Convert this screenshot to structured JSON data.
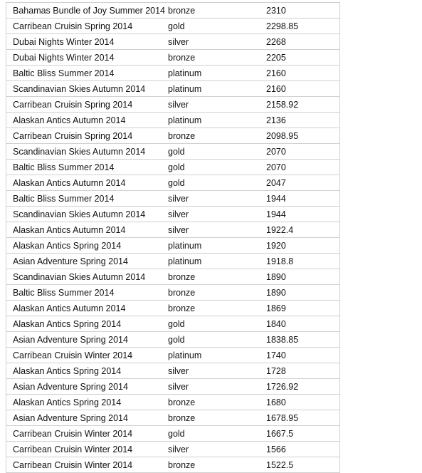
{
  "table": {
    "rows": [
      {
        "package": "Bahamas Bundle of Joy Summer 2014",
        "tier": "bronze",
        "price": "2310"
      },
      {
        "package": "Carribean Cruisin Spring 2014",
        "tier": "gold",
        "price": "2298.85"
      },
      {
        "package": "Dubai Nights Winter 2014",
        "tier": "silver",
        "price": "2268"
      },
      {
        "package": "Dubai Nights Winter 2014",
        "tier": "bronze",
        "price": "2205"
      },
      {
        "package": "Baltic Bliss Summer 2014",
        "tier": "platinum",
        "price": "2160"
      },
      {
        "package": "Scandinavian Skies Autumn 2014",
        "tier": "platinum",
        "price": "2160"
      },
      {
        "package": "Carribean Cruisin Spring 2014",
        "tier": "silver",
        "price": "2158.92"
      },
      {
        "package": "Alaskan Antics Autumn 2014",
        "tier": "platinum",
        "price": "2136"
      },
      {
        "package": "Carribean Cruisin Spring 2014",
        "tier": "bronze",
        "price": "2098.95"
      },
      {
        "package": "Scandinavian Skies Autumn 2014",
        "tier": "gold",
        "price": "2070"
      },
      {
        "package": "Baltic Bliss Summer 2014",
        "tier": "gold",
        "price": "2070"
      },
      {
        "package": "Alaskan Antics Autumn 2014",
        "tier": "gold",
        "price": "2047"
      },
      {
        "package": "Baltic Bliss Summer 2014",
        "tier": "silver",
        "price": "1944"
      },
      {
        "package": "Scandinavian Skies Autumn 2014",
        "tier": "silver",
        "price": "1944"
      },
      {
        "package": "Alaskan Antics Autumn 2014",
        "tier": "silver",
        "price": "1922.4"
      },
      {
        "package": "Alaskan Antics Spring 2014",
        "tier": "platinum",
        "price": "1920"
      },
      {
        "package": "Asian Adventure Spring 2014",
        "tier": "platinum",
        "price": "1918.8"
      },
      {
        "package": "Scandinavian Skies Autumn 2014",
        "tier": "bronze",
        "price": "1890"
      },
      {
        "package": "Baltic Bliss Summer 2014",
        "tier": "bronze",
        "price": "1890"
      },
      {
        "package": "Alaskan Antics Autumn 2014",
        "tier": "bronze",
        "price": "1869"
      },
      {
        "package": "Alaskan Antics Spring 2014",
        "tier": "gold",
        "price": "1840"
      },
      {
        "package": "Asian Adventure Spring 2014",
        "tier": "gold",
        "price": "1838.85"
      },
      {
        "package": "Carribean Cruisin Winter 2014",
        "tier": "platinum",
        "price": "1740"
      },
      {
        "package": "Alaskan Antics Spring 2014",
        "tier": "silver",
        "price": "1728"
      },
      {
        "package": "Asian Adventure Spring 2014",
        "tier": "silver",
        "price": "1726.92"
      },
      {
        "package": "Alaskan Antics Spring 2014",
        "tier": "bronze",
        "price": "1680"
      },
      {
        "package": "Asian Adventure Spring 2014",
        "tier": "bronze",
        "price": "1678.95"
      },
      {
        "package": "Carribean Cruisin Winter 2014",
        "tier": "gold",
        "price": "1667.5"
      },
      {
        "package": "Carribean Cruisin Winter 2014",
        "tier": "silver",
        "price": "1566"
      },
      {
        "package": "Carribean Cruisin Winter 2014",
        "tier": "bronze",
        "price": "1522.5"
      }
    ]
  }
}
